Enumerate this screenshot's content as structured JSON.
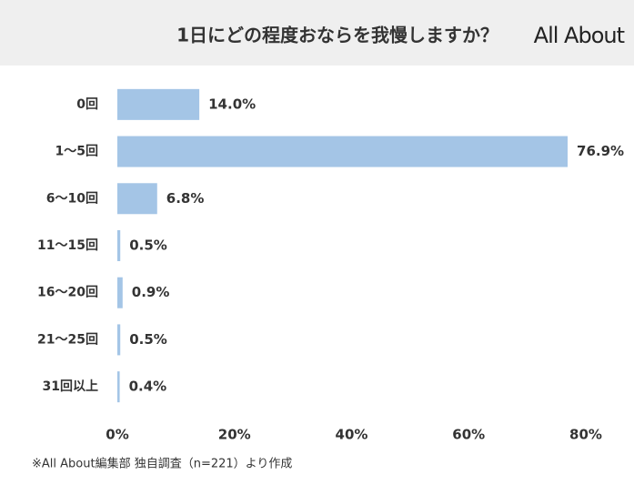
{
  "chart_data": {
    "type": "barh",
    "title": "1日にどの程度おならを我慢しますか？",
    "logo": "All About",
    "note": "※All About編集部 独自調査（n=221）より作成",
    "categories": [
      "0回",
      "1〜5回",
      "6〜10回",
      "11〜15回",
      "16〜20回",
      "21〜25回",
      "31回以上"
    ],
    "values": [
      14.0,
      76.9,
      6.8,
      0.5,
      0.9,
      0.5,
      0.4
    ],
    "value_labels": [
      "14.0%",
      "76.9%",
      "6.8%",
      "0.5%",
      "0.9%",
      "0.5%",
      "0.4%"
    ],
    "color": "#a4c5e6",
    "xlim": [
      0,
      80
    ],
    "xticks": [
      {
        "value": 0,
        "label": "0%"
      },
      {
        "value": 20,
        "label": "20%"
      },
      {
        "value": 40,
        "label": "40%"
      },
      {
        "value": 60,
        "label": "60%"
      },
      {
        "value": 80,
        "label": "80%"
      }
    ],
    "grid": false
  }
}
